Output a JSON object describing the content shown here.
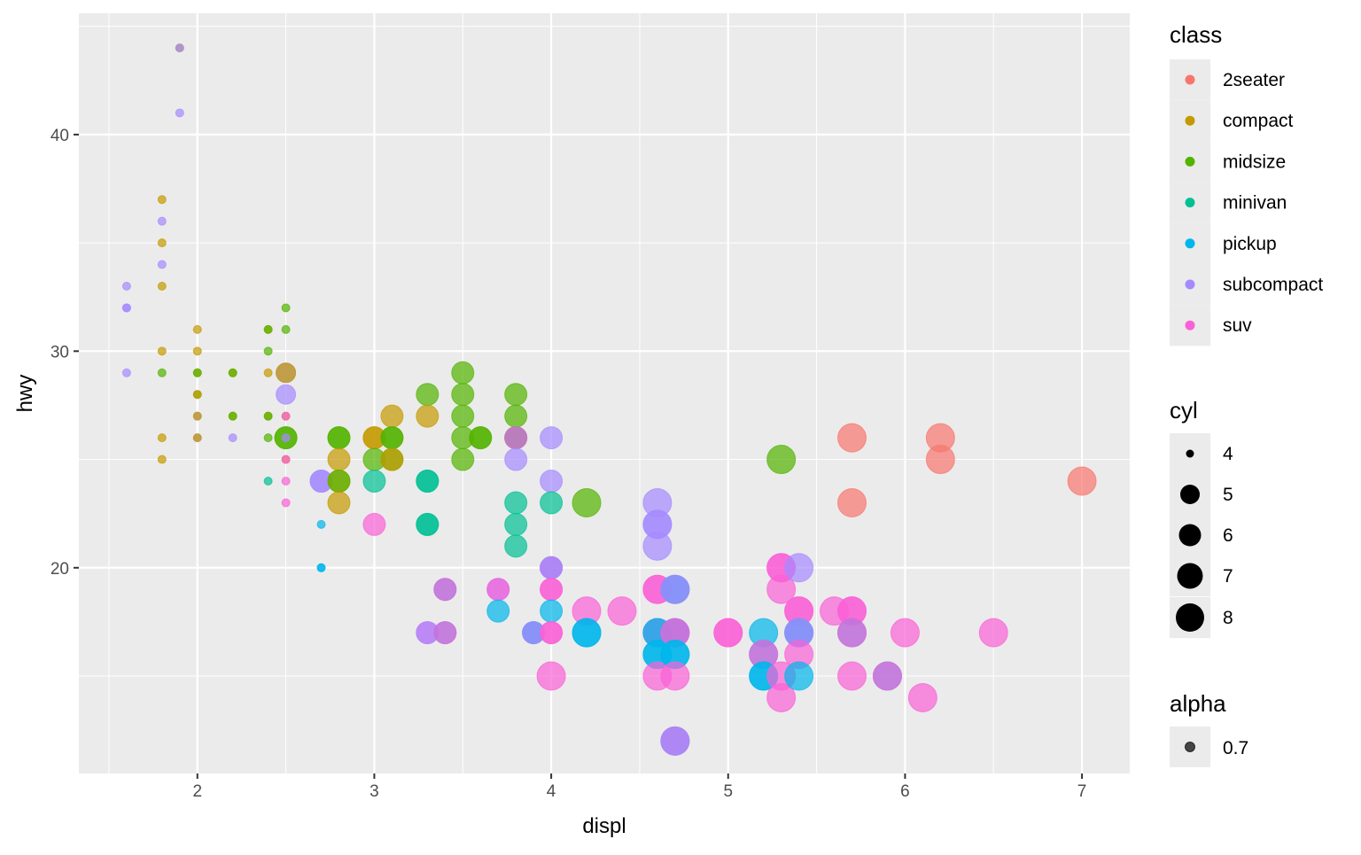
{
  "chart_data": {
    "type": "scatter",
    "xlabel": "displ",
    "ylabel": "hwy",
    "xlim": [
      1.33,
      7.27
    ],
    "ylim": [
      10.5,
      45.6
    ],
    "xticks": [
      2,
      3,
      4,
      5,
      6,
      7
    ],
    "yticks": [
      20,
      30,
      40
    ],
    "grid": true,
    "legend_position": "right",
    "legends": {
      "class": {
        "title": "class",
        "entries": [
          "2seater",
          "compact",
          "midsize",
          "minivan",
          "pickup",
          "subcompact",
          "suv"
        ],
        "colors": [
          "#F8766D",
          "#C49A00",
          "#53B400",
          "#00C094",
          "#00B6EB",
          "#A58AFF",
          "#FB61D7"
        ]
      },
      "cyl": {
        "title": "cyl",
        "entries": [
          "4",
          "5",
          "6",
          "7",
          "8"
        ]
      },
      "alpha": {
        "title": "alpha",
        "entries": [
          "0.7"
        ]
      }
    },
    "alpha": 0.7,
    "points": [
      [
        1.9,
        44,
        "compact",
        4
      ],
      [
        1.9,
        44,
        "subcompact",
        4
      ],
      [
        1.9,
        41,
        "subcompact",
        4
      ],
      [
        1.8,
        37,
        "compact",
        4
      ],
      [
        1.8,
        36,
        "subcompact",
        4
      ],
      [
        1.8,
        35,
        "compact",
        4
      ],
      [
        1.8,
        34,
        "subcompact",
        4
      ],
      [
        1.8,
        33,
        "compact",
        4
      ],
      [
        1.8,
        30,
        "compact",
        4
      ],
      [
        1.8,
        29,
        "midsize",
        4
      ],
      [
        1.8,
        26,
        "compact",
        4
      ],
      [
        1.8,
        25,
        "compact",
        4
      ],
      [
        1.6,
        33,
        "subcompact",
        4
      ],
      [
        1.6,
        32,
        "subcompact",
        4
      ],
      [
        1.6,
        32,
        "subcompact",
        4
      ],
      [
        1.6,
        29,
        "subcompact",
        4
      ],
      [
        2.0,
        31,
        "compact",
        4
      ],
      [
        2.0,
        30,
        "compact",
        4
      ],
      [
        2.0,
        29,
        "compact",
        4
      ],
      [
        2.0,
        29,
        "midsize",
        4
      ],
      [
        2.0,
        28,
        "midsize",
        4
      ],
      [
        2.0,
        28,
        "compact",
        4
      ],
      [
        2.0,
        27,
        "subcompact",
        4
      ],
      [
        2.0,
        27,
        "compact",
        4
      ],
      [
        2.0,
        26,
        "subcompact",
        4
      ],
      [
        2.0,
        26,
        "compact",
        4
      ],
      [
        2.2,
        29,
        "compact",
        4
      ],
      [
        2.2,
        29,
        "midsize",
        4
      ],
      [
        2.2,
        27,
        "compact",
        4
      ],
      [
        2.2,
        27,
        "midsize",
        4
      ],
      [
        2.2,
        26,
        "subcompact",
        4
      ],
      [
        2.4,
        31,
        "compact",
        4
      ],
      [
        2.4,
        31,
        "midsize",
        4
      ],
      [
        2.4,
        30,
        "midsize",
        4
      ],
      [
        2.4,
        29,
        "compact",
        4
      ],
      [
        2.4,
        27,
        "compact",
        4
      ],
      [
        2.4,
        27,
        "midsize",
        4
      ],
      [
        2.4,
        26,
        "midsize",
        4
      ],
      [
        2.4,
        24,
        "minivan",
        4
      ],
      [
        2.5,
        32,
        "midsize",
        4
      ],
      [
        2.5,
        31,
        "midsize",
        4
      ],
      [
        2.5,
        29,
        "subcompact",
        5
      ],
      [
        2.5,
        29,
        "compact",
        5
      ],
      [
        2.5,
        28,
        "subcompact",
        5
      ],
      [
        2.5,
        27,
        "compact",
        4
      ],
      [
        2.5,
        27,
        "suv",
        4
      ],
      [
        2.5,
        26,
        "midsize",
        6
      ],
      [
        2.5,
        26,
        "midsize",
        6
      ],
      [
        2.5,
        26,
        "subcompact",
        4
      ],
      [
        2.5,
        25,
        "compact",
        4
      ],
      [
        2.5,
        25,
        "suv",
        4
      ],
      [
        2.5,
        24,
        "suv",
        4
      ],
      [
        2.5,
        23,
        "suv",
        4
      ],
      [
        2.7,
        22,
        "pickup",
        4
      ],
      [
        2.7,
        20,
        "pickup",
        4
      ],
      [
        2.7,
        20,
        "pickup",
        4
      ],
      [
        2.7,
        24,
        "subcompact",
        6
      ],
      [
        2.7,
        24,
        "subcompact",
        6
      ],
      [
        2.8,
        26,
        "midsize",
        6
      ],
      [
        2.8,
        26,
        "midsize",
        6
      ],
      [
        2.8,
        25,
        "compact",
        6
      ],
      [
        2.8,
        24,
        "compact",
        6
      ],
      [
        2.8,
        24,
        "midsize",
        6
      ],
      [
        2.8,
        23,
        "compact",
        6
      ],
      [
        3.0,
        26,
        "compact",
        6
      ],
      [
        3.0,
        26,
        "compact",
        6
      ],
      [
        3.0,
        25,
        "midsize",
        6
      ],
      [
        3.0,
        24,
        "minivan",
        6
      ],
      [
        3.0,
        22,
        "suv",
        6
      ],
      [
        3.1,
        27,
        "compact",
        6
      ],
      [
        3.1,
        26,
        "midsize",
        6
      ],
      [
        3.1,
        26,
        "midsize",
        6
      ],
      [
        3.1,
        25,
        "midsize",
        6
      ],
      [
        3.1,
        25,
        "compact",
        6
      ],
      [
        3.3,
        28,
        "midsize",
        6
      ],
      [
        3.3,
        27,
        "compact",
        6
      ],
      [
        3.3,
        24,
        "minivan",
        6
      ],
      [
        3.3,
        24,
        "minivan",
        6
      ],
      [
        3.3,
        22,
        "minivan",
        6
      ],
      [
        3.3,
        22,
        "minivan",
        6
      ],
      [
        3.3,
        17,
        "suv",
        6
      ],
      [
        3.3,
        17,
        "subcompact",
        6
      ],
      [
        3.4,
        19,
        "pickup",
        6
      ],
      [
        3.4,
        19,
        "suv",
        6
      ],
      [
        3.4,
        17,
        "pickup",
        6
      ],
      [
        3.4,
        17,
        "suv",
        6
      ],
      [
        3.5,
        29,
        "midsize",
        6
      ],
      [
        3.5,
        28,
        "midsize",
        6
      ],
      [
        3.5,
        27,
        "midsize",
        6
      ],
      [
        3.5,
        26,
        "midsize",
        6
      ],
      [
        3.5,
        25,
        "midsize",
        6
      ],
      [
        3.6,
        26,
        "midsize",
        6
      ],
      [
        3.6,
        26,
        "midsize",
        6
      ],
      [
        3.7,
        19,
        "subcompact",
        6
      ],
      [
        3.7,
        19,
        "suv",
        6
      ],
      [
        3.7,
        18,
        "pickup",
        6
      ],
      [
        3.8,
        28,
        "midsize",
        6
      ],
      [
        3.8,
        27,
        "midsize",
        6
      ],
      [
        3.8,
        26,
        "midsize",
        6
      ],
      [
        3.8,
        26,
        "minivan",
        6
      ],
      [
        3.8,
        26,
        "suv",
        6
      ],
      [
        3.8,
        25,
        "subcompact",
        6
      ],
      [
        3.8,
        23,
        "minivan",
        6
      ],
      [
        3.8,
        22,
        "minivan",
        6
      ],
      [
        3.8,
        21,
        "minivan",
        6
      ],
      [
        3.9,
        17,
        "suv",
        6
      ],
      [
        3.9,
        17,
        "pickup",
        6
      ],
      [
        3.9,
        17,
        "subcompact",
        6
      ],
      [
        4.0,
        26,
        "subcompact",
        6
      ],
      [
        4.0,
        24,
        "subcompact",
        6
      ],
      [
        4.0,
        23,
        "minivan",
        6
      ],
      [
        4.0,
        20,
        "pickup",
        6
      ],
      [
        4.0,
        20,
        "suv",
        6
      ],
      [
        4.0,
        20,
        "subcompact",
        6
      ],
      [
        4.0,
        19,
        "suv",
        6
      ],
      [
        4.0,
        19,
        "suv",
        6
      ],
      [
        4.0,
        18,
        "pickup",
        6
      ],
      [
        4.0,
        17,
        "suv",
        6
      ],
      [
        4.0,
        17,
        "suv",
        6
      ],
      [
        4.0,
        15,
        "suv",
        8
      ],
      [
        4.2,
        23,
        "midsize",
        8
      ],
      [
        4.2,
        18,
        "suv",
        8
      ],
      [
        4.2,
        17,
        "pickup",
        8
      ],
      [
        4.2,
        17,
        "pickup",
        8
      ],
      [
        4.4,
        18,
        "suv",
        8
      ],
      [
        4.6,
        23,
        "subcompact",
        8
      ],
      [
        4.6,
        22,
        "subcompact",
        8
      ],
      [
        4.6,
        22,
        "subcompact",
        8
      ],
      [
        4.6,
        21,
        "subcompact",
        8
      ],
      [
        4.6,
        19,
        "suv",
        8
      ],
      [
        4.6,
        19,
        "suv",
        8
      ],
      [
        4.6,
        17,
        "pickup",
        8
      ],
      [
        4.6,
        17,
        "suv",
        8
      ],
      [
        4.6,
        17,
        "pickup",
        8
      ],
      [
        4.6,
        16,
        "pickup",
        8
      ],
      [
        4.6,
        16,
        "pickup",
        8
      ],
      [
        4.6,
        15,
        "suv",
        8
      ],
      [
        4.7,
        19,
        "suv",
        8
      ],
      [
        4.7,
        19,
        "pickup",
        8
      ],
      [
        4.7,
        19,
        "subcompact",
        8
      ],
      [
        4.7,
        17,
        "suv",
        8
      ],
      [
        4.7,
        17,
        "pickup",
        8
      ],
      [
        4.7,
        17,
        "suv",
        8
      ],
      [
        4.7,
        16,
        "pickup",
        8
      ],
      [
        4.7,
        16,
        "pickup",
        8
      ],
      [
        4.7,
        15,
        "suv",
        8
      ],
      [
        4.7,
        12,
        "pickup",
        8
      ],
      [
        4.7,
        12,
        "suv",
        8
      ],
      [
        4.7,
        12,
        "subcompact",
        8
      ],
      [
        5.0,
        17,
        "suv",
        8
      ],
      [
        5.0,
        17,
        "suv",
        8
      ],
      [
        5.2,
        17,
        "pickup",
        8
      ],
      [
        5.2,
        16,
        "pickup",
        8
      ],
      [
        5.2,
        16,
        "suv",
        8
      ],
      [
        5.2,
        15,
        "pickup",
        8
      ],
      [
        5.2,
        15,
        "pickup",
        8
      ],
      [
        5.3,
        25,
        "midsize",
        8
      ],
      [
        5.3,
        20,
        "suv",
        8
      ],
      [
        5.3,
        20,
        "suv",
        8
      ],
      [
        5.3,
        19,
        "suv",
        8
      ],
      [
        5.3,
        15,
        "suv",
        8
      ],
      [
        5.3,
        14,
        "suv",
        8
      ],
      [
        5.4,
        20,
        "subcompact",
        8
      ],
      [
        5.4,
        18,
        "suv",
        8
      ],
      [
        5.4,
        18,
        "suv",
        8
      ],
      [
        5.4,
        17,
        "suv",
        8
      ],
      [
        5.4,
        17,
        "pickup",
        8
      ],
      [
        5.4,
        17,
        "subcompact",
        8
      ],
      [
        5.4,
        16,
        "suv",
        8
      ],
      [
        5.4,
        15,
        "pickup",
        8
      ],
      [
        5.6,
        18,
        "suv",
        8
      ],
      [
        5.7,
        26,
        "2seater",
        8
      ],
      [
        5.7,
        23,
        "2seater",
        8
      ],
      [
        5.7,
        18,
        "suv",
        8
      ],
      [
        5.7,
        18,
        "suv",
        8
      ],
      [
        5.7,
        17,
        "pickup",
        8
      ],
      [
        5.7,
        17,
        "suv",
        8
      ],
      [
        5.7,
        15,
        "suv",
        8
      ],
      [
        5.9,
        15,
        "pickup",
        8
      ],
      [
        5.9,
        15,
        "suv",
        8
      ],
      [
        6.0,
        17,
        "suv",
        8
      ],
      [
        6.1,
        14,
        "suv",
        8
      ],
      [
        6.2,
        26,
        "2seater",
        8
      ],
      [
        6.2,
        25,
        "2seater",
        8
      ],
      [
        6.5,
        17,
        "suv",
        8
      ],
      [
        7.0,
        24,
        "2seater",
        8
      ]
    ]
  }
}
